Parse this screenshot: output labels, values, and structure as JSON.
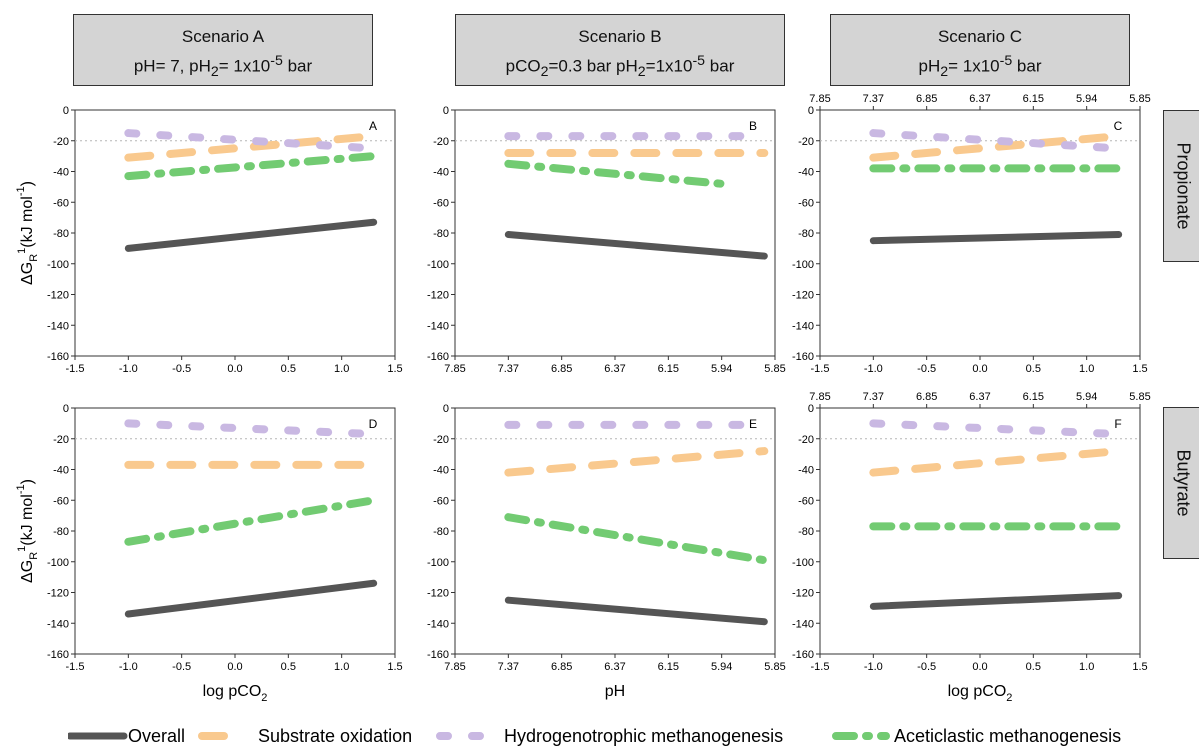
{
  "headers": [
    {
      "line1": "Scenario A",
      "line2_html": "pH= 7, pH<sub>2</sub>= 1x10<sup>-5</sup> bar"
    },
    {
      "line1": "Scenario B",
      "line2_html": "pCO<sub>2</sub>=0.3 bar pH<sub>2</sub>=1x10<sup>-5</sup> bar"
    },
    {
      "line1": "Scenario C",
      "line2_html": "pH<sub>2</sub>= 1x10<sup>-5</sup> bar"
    }
  ],
  "row_labels": [
    "Propionate",
    "Butyrate"
  ],
  "y_axis_label": {
    "main": "ΔG",
    "sub": "R",
    "sup1": "1",
    "mid": "(kJ mol",
    "sup2": "-1",
    "end": ")"
  },
  "x_axis_labels": {
    "log": {
      "main": "log pCO",
      "sub": "2"
    },
    "ph": "pH"
  },
  "x_ticks_log": [
    "-1.5",
    "-1.0",
    "-0.5",
    "0.0",
    "0.5",
    "1.0",
    "1.5"
  ],
  "x_ticks_ph": [
    "7.85",
    "7.37",
    "6.85",
    "6.37",
    "6.15",
    "5.94",
    "5.85"
  ],
  "top_ticks_ph": [
    "7.85",
    "7.37",
    "6.85",
    "6.37",
    "6.15",
    "5.94",
    "5.85"
  ],
  "y_ticks": [
    "0",
    "-20",
    "-40",
    "-60",
    "-80",
    "-100",
    "-120",
    "-140",
    "-160"
  ],
  "colors": {
    "overall": "#555555",
    "substrate": "#f9c98e",
    "hydro": "#c9b8e2",
    "acetic": "#72cb72",
    "frame": "#333333"
  },
  "legend": [
    {
      "key": "overall",
      "label": "Overall"
    },
    {
      "key": "substrate",
      "label": "Substrate oxidation"
    },
    {
      "key": "hydro",
      "label": "Hydrogenotrophic methanogenesis"
    },
    {
      "key": "acetic",
      "label": "Aceticlastic methanogenesis"
    }
  ],
  "chart_data": [
    {
      "type": "line",
      "panel": "A",
      "xlabel": "",
      "ylabel": "ΔGR1(kJ mol-1)",
      "xlim": [
        -1.5,
        1.5
      ],
      "ylim": [
        -160,
        0
      ],
      "reference_line_y": -20,
      "series": [
        {
          "name": "Overall",
          "x": [
            -1.0,
            1.3
          ],
          "y": [
            -90,
            -73
          ]
        },
        {
          "name": "Substrate oxidation",
          "x": [
            -1.0,
            1.3
          ],
          "y": [
            -31,
            -17
          ]
        },
        {
          "name": "Hydrogenotrophic methanogenesis",
          "x": [
            -1.0,
            1.3
          ],
          "y": [
            -15,
            -25
          ]
        },
        {
          "name": "Aceticlastic methanogenesis",
          "x": [
            -1.0,
            1.3
          ],
          "y": [
            -43,
            -30
          ]
        }
      ]
    },
    {
      "type": "line",
      "panel": "B",
      "xlabel": "",
      "ylabel": "",
      "xlim": [
        0,
        6
      ],
      "ylim": [
        -160,
        0
      ],
      "reference_line_y": -20,
      "series": [
        {
          "name": "Overall",
          "x": [
            1,
            5.8
          ],
          "y": [
            -81,
            -95
          ]
        },
        {
          "name": "Substrate oxidation",
          "x": [
            1,
            5.8
          ],
          "y": [
            -28,
            -28
          ]
        },
        {
          "name": "Hydrogenotrophic methanogenesis",
          "x": [
            1,
            5.8
          ],
          "y": [
            -17,
            -17
          ]
        },
        {
          "name": "Aceticlastic methanogenesis",
          "x": [
            1,
            5.0
          ],
          "y": [
            -35,
            -48
          ]
        }
      ]
    },
    {
      "type": "line",
      "panel": "C",
      "xlabel": "",
      "ylabel": "",
      "xlim": [
        -1.5,
        1.5
      ],
      "ylim": [
        -160,
        0
      ],
      "reference_line_y": -20,
      "series": [
        {
          "name": "Overall",
          "x": [
            -1.0,
            1.3
          ],
          "y": [
            -85,
            -81
          ]
        },
        {
          "name": "Substrate oxidation",
          "x": [
            -1.0,
            1.3
          ],
          "y": [
            -31,
            -17
          ]
        },
        {
          "name": "Hydrogenotrophic methanogenesis",
          "x": [
            -1.0,
            1.3
          ],
          "y": [
            -15,
            -25
          ]
        },
        {
          "name": "Aceticlastic methanogenesis",
          "x": [
            -1.0,
            1.3
          ],
          "y": [
            -38,
            -38
          ]
        }
      ]
    },
    {
      "type": "line",
      "panel": "D",
      "xlabel": "log pCO2",
      "ylabel": "ΔGR1(kJ mol-1)",
      "xlim": [
        -1.5,
        1.5
      ],
      "ylim": [
        -160,
        0
      ],
      "reference_line_y": -20,
      "series": [
        {
          "name": "Overall",
          "x": [
            -1.0,
            1.3
          ],
          "y": [
            -134,
            -114
          ]
        },
        {
          "name": "Substrate oxidation",
          "x": [
            -1.0,
            1.3
          ],
          "y": [
            -37,
            -37
          ]
        },
        {
          "name": "Hydrogenotrophic methanogenesis",
          "x": [
            -1.0,
            1.3
          ],
          "y": [
            -10,
            -17
          ]
        },
        {
          "name": "Aceticlastic methanogenesis",
          "x": [
            -1.0,
            1.3
          ],
          "y": [
            -87,
            -60
          ]
        }
      ]
    },
    {
      "type": "line",
      "panel": "E",
      "xlabel": "pH",
      "ylabel": "",
      "xlim": [
        0,
        6
      ],
      "ylim": [
        -160,
        0
      ],
      "reference_line_y": -20,
      "series": [
        {
          "name": "Overall",
          "x": [
            1,
            5.8
          ],
          "y": [
            -125,
            -139
          ]
        },
        {
          "name": "Substrate oxidation",
          "x": [
            1,
            5.8
          ],
          "y": [
            -42,
            -28
          ]
        },
        {
          "name": "Hydrogenotrophic methanogenesis",
          "x": [
            1,
            5.8
          ],
          "y": [
            -11,
            -11
          ]
        },
        {
          "name": "Aceticlastic methanogenesis",
          "x": [
            1,
            5.8
          ],
          "y": [
            -71,
            -99
          ]
        }
      ]
    },
    {
      "type": "line",
      "panel": "F",
      "xlabel": "log pCO2",
      "ylabel": "",
      "xlim": [
        -1.5,
        1.5
      ],
      "ylim": [
        -160,
        0
      ],
      "reference_line_y": -20,
      "series": [
        {
          "name": "Overall",
          "x": [
            -1.0,
            1.3
          ],
          "y": [
            -129,
            -122
          ]
        },
        {
          "name": "Substrate oxidation",
          "x": [
            -1.0,
            1.3
          ],
          "y": [
            -42,
            -28
          ]
        },
        {
          "name": "Hydrogenotrophic methanogenesis",
          "x": [
            -1.0,
            1.3
          ],
          "y": [
            -10,
            -17
          ]
        },
        {
          "name": "Aceticlastic methanogenesis",
          "x": [
            -1.0,
            1.3
          ],
          "y": [
            -77,
            -77
          ]
        }
      ]
    }
  ]
}
